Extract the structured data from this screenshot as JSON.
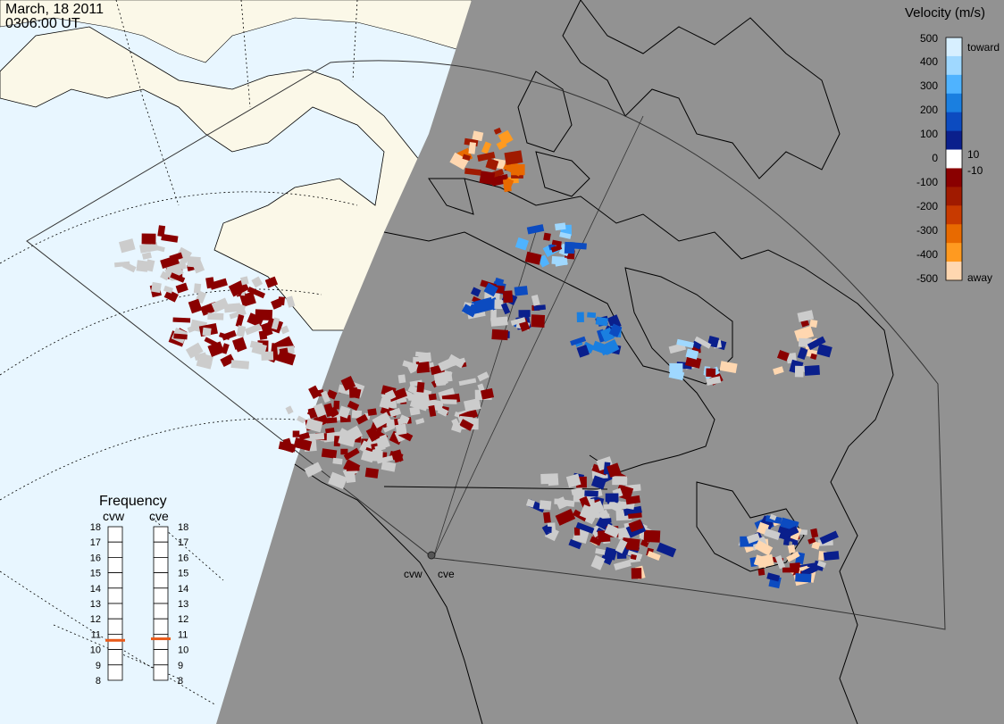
{
  "header": {
    "date": "March, 18 2011",
    "time": "0306:00 UT"
  },
  "radars": [
    {
      "code": "cvw"
    },
    {
      "code": "cve"
    }
  ],
  "frequency_panel": {
    "title": "Frequency",
    "scale_min": 8,
    "scale_max": 18,
    "ticks": [
      "18",
      "17",
      "16",
      "15",
      "14",
      "13",
      "12",
      "11",
      "10",
      "9",
      "8"
    ],
    "indicators": [
      {
        "radar": "cvw",
        "value": 10.6
      },
      {
        "radar": "cve",
        "value": 10.7
      }
    ]
  },
  "velocity_legend": {
    "title": "Velocity (m/s)",
    "labels": [
      "500",
      "400",
      "300",
      "200",
      "100",
      "10",
      "0",
      "-10",
      "-100",
      "-200",
      "-300",
      "-400",
      "-500"
    ],
    "toward": "toward",
    "away": "away",
    "colors": [
      "#d7efff",
      "#9fd8ff",
      "#4fb3ff",
      "#1a7fe0",
      "#0c4bc0",
      "#0a1f8c",
      "#ffffff",
      "#8a0000",
      "#a01a00",
      "#c83a00",
      "#e86a00",
      "#ff9a20",
      "#ffd7b0"
    ],
    "ground_scatter_color": "#cccccc"
  },
  "map_colors": {
    "ocean": "#e8f6ff",
    "land": "#fbf8e8",
    "night": "#929292"
  }
}
